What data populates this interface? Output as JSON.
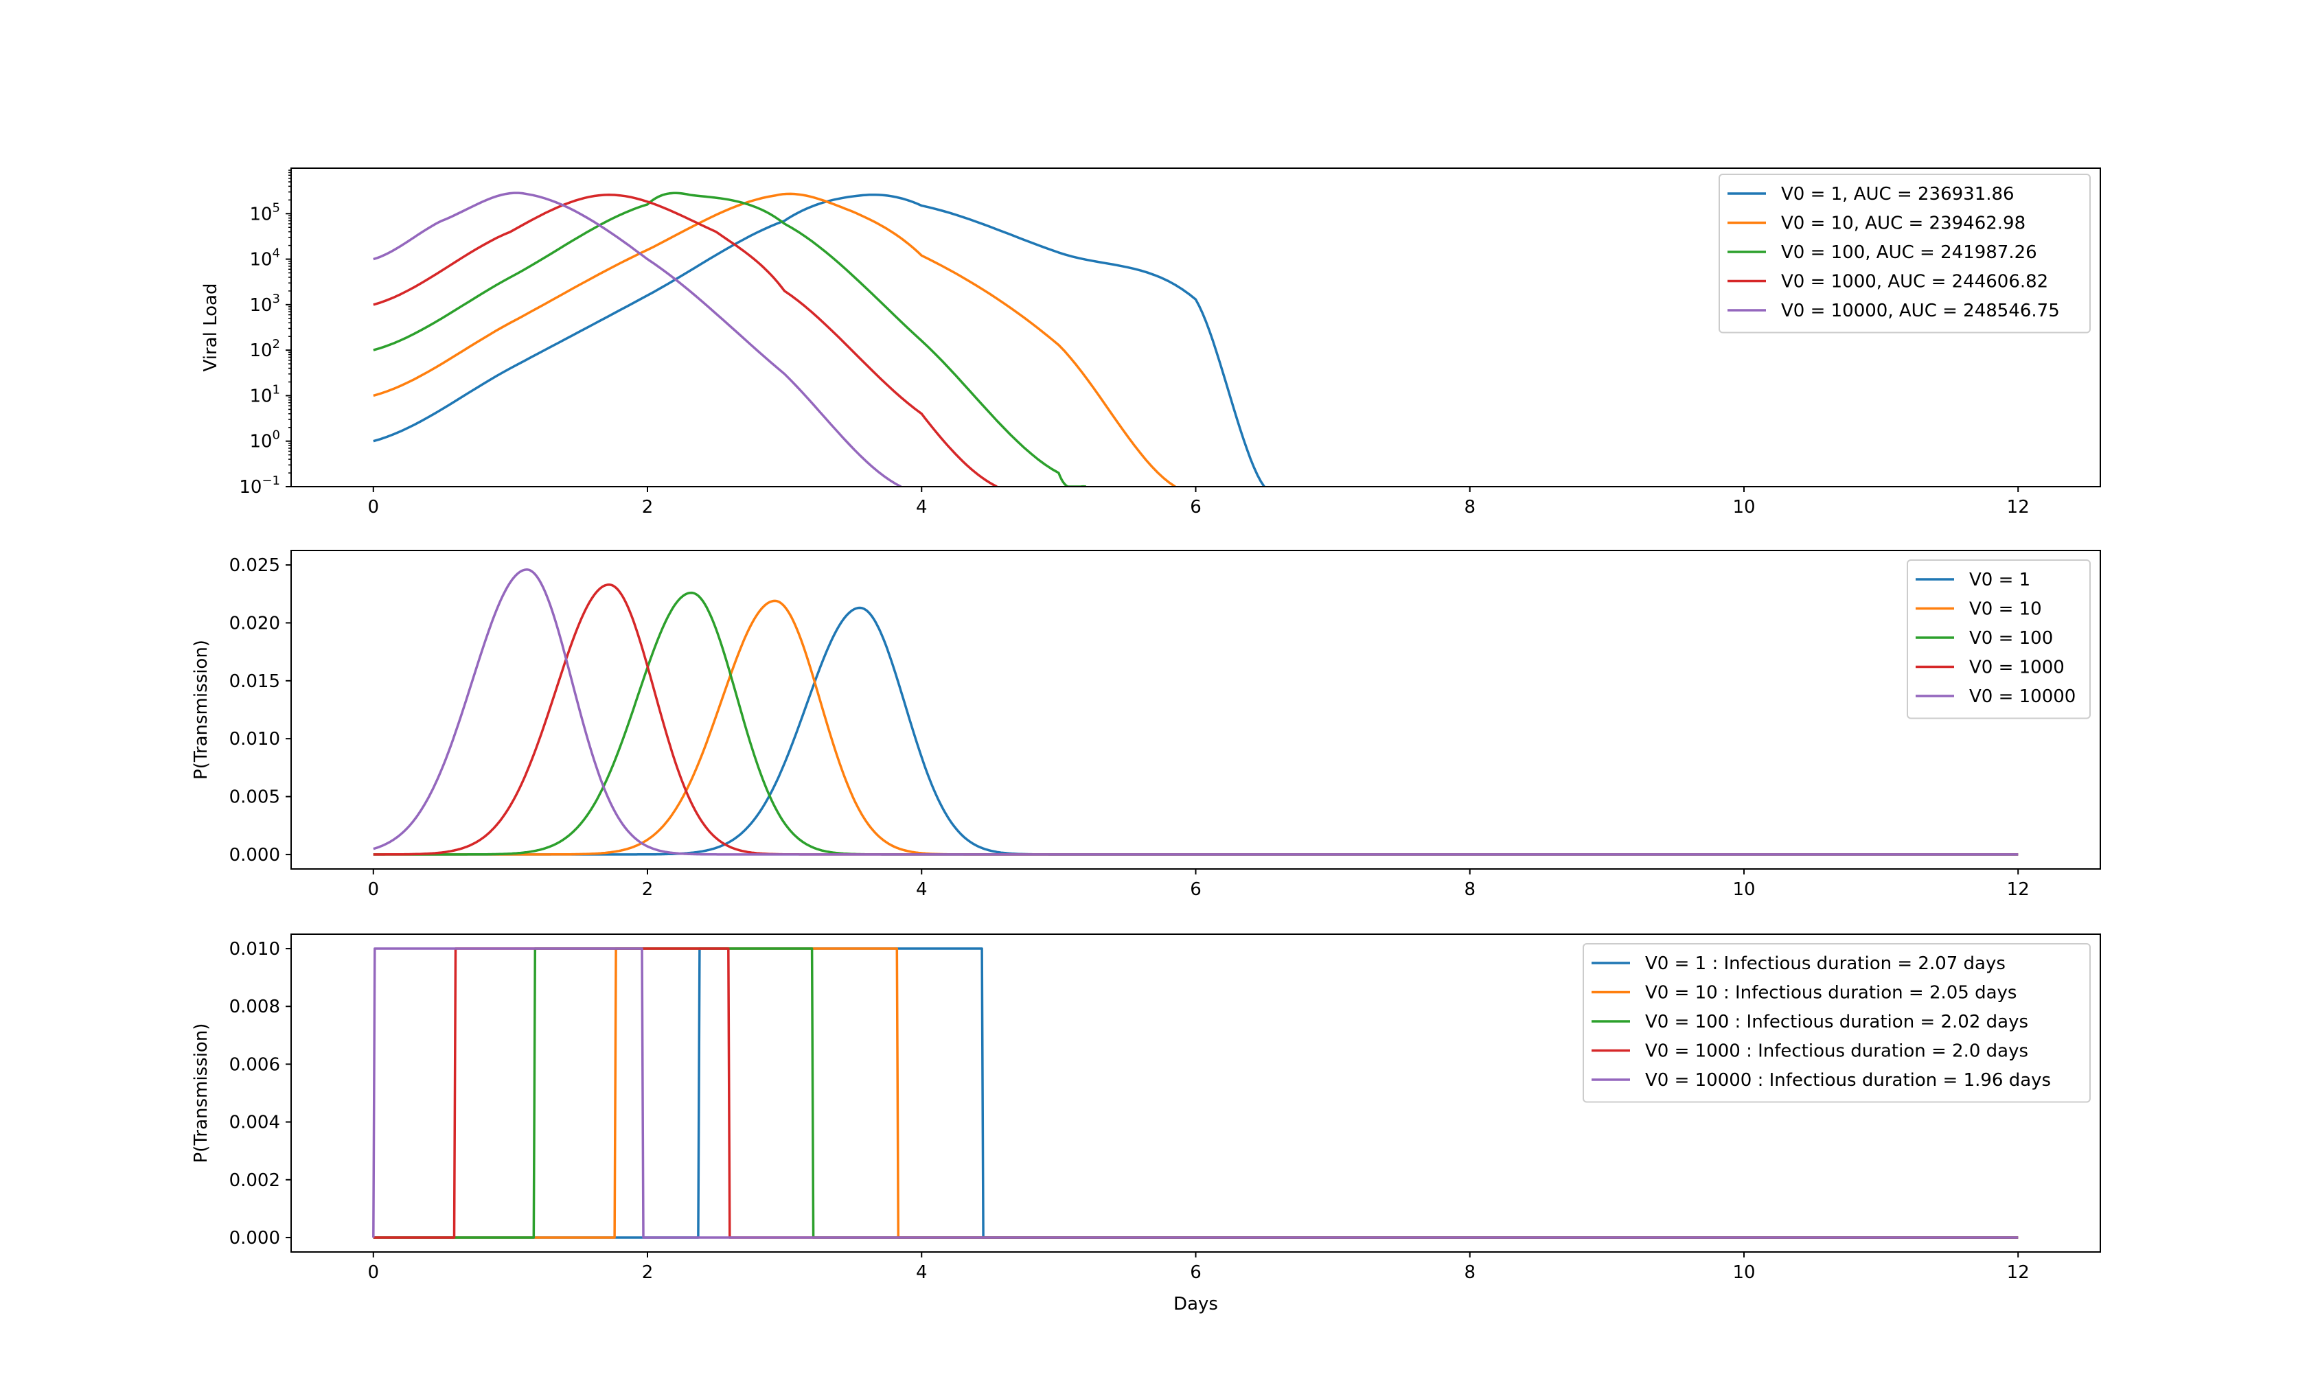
{
  "colors": {
    "palette": [
      "#1f77b4",
      "#ff7f0e",
      "#2ca02c",
      "#d62728",
      "#9467bd"
    ],
    "axes": "#000000",
    "legend_border": "#cccccc"
  },
  "chart_data": [
    {
      "type": "line",
      "xlabel": "",
      "ylabel": "Viral Load",
      "xlim": [
        -0.6,
        12.6
      ],
      "ylim": [
        0.1,
        1000000
      ],
      "yscale": "log",
      "xticks": [
        0,
        2,
        4,
        6,
        8,
        10,
        12
      ],
      "xtick_labels": [
        "0",
        "2",
        "4",
        "6",
        "8",
        "10",
        "12"
      ],
      "yticks": [
        0.1,
        1,
        10,
        100,
        1000,
        10000,
        100000
      ],
      "ytick_labels": [
        {
          "base": "10",
          "exp": "−1"
        },
        {
          "base": "10",
          "exp": "0"
        },
        {
          "base": "10",
          "exp": "1"
        },
        {
          "base": "10",
          "exp": "2"
        },
        {
          "base": "10",
          "exp": "3"
        },
        {
          "base": "10",
          "exp": "4"
        },
        {
          "base": "10",
          "exp": "5"
        }
      ],
      "grid": false,
      "legend_position": "upper right",
      "series": [
        {
          "name": "V0 = 1, AUC = 236931.86",
          "color": "#1f77b4",
          "x": [
            0,
            1,
            2,
            3,
            3.55,
            4,
            5,
            6,
            6.5
          ],
          "y": [
            1,
            40,
            1600,
            70000,
            250000,
            150000,
            14000,
            1300,
            0.1
          ]
        },
        {
          "name": "V0 = 10, AUC = 239462.98",
          "color": "#ff7f0e",
          "x": [
            0,
            1,
            2,
            2.93,
            3.5,
            4,
            5,
            5.85
          ],
          "y": [
            10,
            400,
            16000,
            250000,
            110000,
            12000,
            130,
            0.1
          ]
        },
        {
          "name": "V0 = 100, AUC = 241987.26",
          "color": "#2ca02c",
          "x": [
            0,
            1,
            2,
            2.32,
            3,
            4,
            5,
            5.2
          ],
          "y": [
            100,
            4000,
            160000,
            255000,
            60000,
            160,
            0.2,
            0.1
          ]
        },
        {
          "name": "V0 = 1000, AUC = 244606.82",
          "color": "#d62728",
          "x": [
            0,
            1,
            1.72,
            2.5,
            3,
            4,
            4.55
          ],
          "y": [
            1000,
            40000,
            260000,
            40000,
            2000,
            4,
            0.1
          ]
        },
        {
          "name": "V0 = 10000, AUC = 248546.75",
          "color": "#9467bd",
          "x": [
            0,
            0.5,
            1.12,
            2,
            3,
            3.85
          ],
          "y": [
            10000,
            70000,
            270000,
            10000,
            30,
            0.1
          ]
        }
      ]
    },
    {
      "type": "line",
      "xlabel": "",
      "ylabel": "P(Transmission)",
      "xlim": [
        -0.6,
        12.6
      ],
      "ylim": [
        -0.00125,
        0.02625
      ],
      "xticks": [
        0,
        2,
        4,
        6,
        8,
        10,
        12
      ],
      "xtick_labels": [
        "0",
        "2",
        "4",
        "6",
        "8",
        "10",
        "12"
      ],
      "yticks": [
        0,
        0.005,
        0.01,
        0.015,
        0.02,
        0.025
      ],
      "ytick_labels": [
        "0.000",
        "0.005",
        "0.010",
        "0.015",
        "0.020",
        "0.025"
      ],
      "grid": false,
      "legend_position": "upper right",
      "series": [
        {
          "name": "V0 = 1",
          "color": "#1f77b4",
          "peak_x": 3.55,
          "peak_y": 0.0213,
          "width_left": 0.39,
          "width_right": 0.33,
          "x_end": 12
        },
        {
          "name": "V0 = 10",
          "color": "#ff7f0e",
          "peak_x": 2.93,
          "peak_y": 0.0219,
          "width_left": 0.39,
          "width_right": 0.33,
          "x_end": 12
        },
        {
          "name": "V0 = 100",
          "color": "#2ca02c",
          "peak_x": 2.32,
          "peak_y": 0.0226,
          "width_left": 0.39,
          "width_right": 0.33,
          "x_end": 12
        },
        {
          "name": "V0 = 1000",
          "color": "#d62728",
          "peak_x": 1.72,
          "peak_y": 0.0233,
          "width_left": 0.39,
          "width_right": 0.33,
          "x_end": 12
        },
        {
          "name": "V0 = 10000",
          "color": "#9467bd",
          "peak_x": 1.12,
          "peak_y": 0.0246,
          "width_left": 0.4,
          "width_right": 0.33,
          "x_end": 12
        }
      ]
    },
    {
      "type": "line",
      "xlabel": "Days",
      "ylabel": "P(Transmission)",
      "xlim": [
        -0.6,
        12.6
      ],
      "ylim": [
        -0.0005,
        0.0105
      ],
      "xticks": [
        0,
        2,
        4,
        6,
        8,
        10,
        12
      ],
      "xtick_labels": [
        "0",
        "2",
        "4",
        "6",
        "8",
        "10",
        "12"
      ],
      "yticks": [
        0,
        0.002,
        0.004,
        0.006,
        0.008,
        0.01
      ],
      "ytick_labels": [
        "0.000",
        "0.002",
        "0.004",
        "0.006",
        "0.008",
        "0.010"
      ],
      "grid": false,
      "legend_position": "upper right",
      "series": [
        {
          "name": "V0 = 1 : Infectious duration = 2.07 days",
          "color": "#1f77b4",
          "x": [
            0,
            2.37,
            2.38,
            4.44,
            4.45,
            12
          ],
          "y": [
            0,
            0,
            0.01,
            0.01,
            0,
            0
          ]
        },
        {
          "name": "V0 = 10 : Infectious duration = 2.05 days",
          "color": "#ff7f0e",
          "x": [
            0,
            1.76,
            1.77,
            3.82,
            3.83,
            12
          ],
          "y": [
            0,
            0,
            0.01,
            0.01,
            0,
            0
          ]
        },
        {
          "name": "V0 = 100 : Infectious duration = 2.02 days",
          "color": "#2ca02c",
          "x": [
            0,
            1.17,
            1.18,
            3.2,
            3.21,
            12
          ],
          "y": [
            0,
            0,
            0.01,
            0.01,
            0,
            0
          ]
        },
        {
          "name": "V0 = 1000 : Infectious duration = 2.0 days",
          "color": "#d62728",
          "x": [
            0,
            0.59,
            0.6,
            2.59,
            2.6,
            12
          ],
          "y": [
            0,
            0,
            0.01,
            0.01,
            0,
            0
          ]
        },
        {
          "name": "V0 = 10000 : Infectious duration = 1.96 days",
          "color": "#9467bd",
          "x": [
            0,
            0.01,
            1.96,
            1.97,
            12
          ],
          "y": [
            0,
            0.01,
            0.01,
            0,
            0
          ]
        }
      ]
    }
  ]
}
